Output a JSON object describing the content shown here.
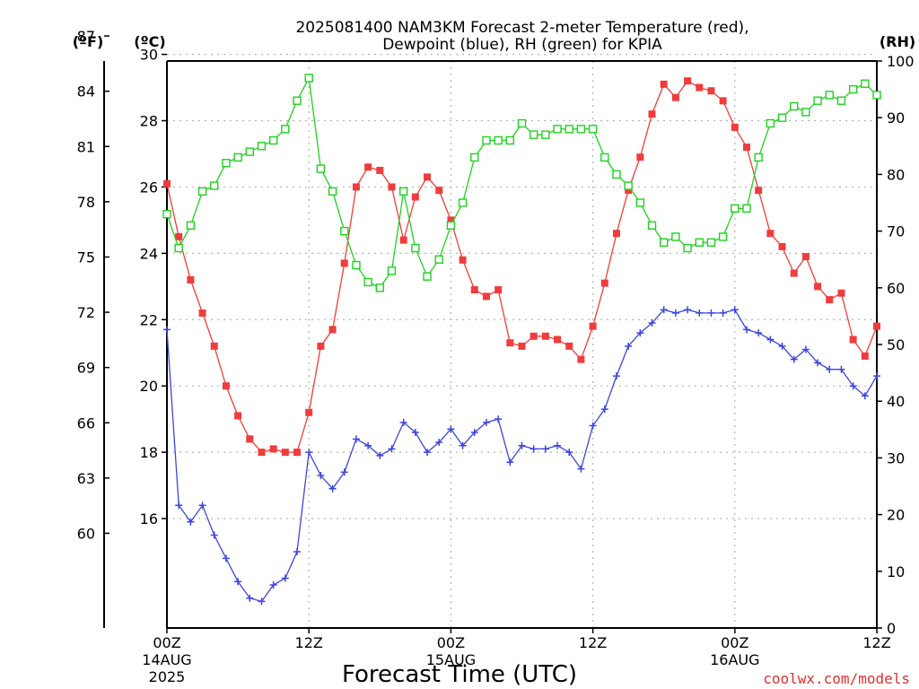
{
  "title_line1": "2025081400 NAM3KM Forecast 2-meter Temperature (red),",
  "title_line2": "Dewpoint (blue), RH (green) for KPIA",
  "credit": "coolwx.com/models",
  "unit_left_f": "(ºF)",
  "unit_left_c": "(ºC)",
  "unit_right": "(RH)",
  "colors": {
    "temperature": "#f03c3c",
    "dewpoint": "#3c46dc",
    "rh": "#1ed21e",
    "grid": "#b4b4b4"
  },
  "chart_data": {
    "type": "line",
    "xlabel": "Forecast Time (UTC)",
    "x_unit": "forecast hour",
    "xlim": [
      0,
      60
    ],
    "x_ticks": [
      {
        "hour": 0,
        "label": "00Z"
      },
      {
        "hour": 12,
        "label": "12Z"
      },
      {
        "hour": 24,
        "label": "00Z"
      },
      {
        "hour": 36,
        "label": "12Z"
      },
      {
        "hour": 48,
        "label": "00Z"
      },
      {
        "hour": 60,
        "label": "12Z"
      }
    ],
    "date_labels": [
      {
        "hour": 0,
        "line1": "14AUG",
        "line2": "2025"
      },
      {
        "hour": 24,
        "line1": "15AUG",
        "line2": ""
      },
      {
        "hour": 48,
        "line1": "16AUG",
        "line2": ""
      }
    ],
    "y_celsius": {
      "lim": [
        12.7,
        29.8
      ],
      "ticks": [
        16,
        18,
        20,
        22,
        24,
        26,
        28,
        30
      ]
    },
    "y_fahrenheit": {
      "ticks": [
        60,
        63,
        66,
        69,
        72,
        75,
        78,
        81,
        84,
        87
      ]
    },
    "y_rh": {
      "lim": [
        0,
        100
      ],
      "ticks": [
        0,
        10,
        20,
        30,
        40,
        50,
        60,
        70,
        80,
        90,
        100
      ]
    },
    "grid": true,
    "series": [
      {
        "name": "Temperature",
        "axis": "celsius",
        "marker": "filled-square",
        "values": [
          26.1,
          24.5,
          23.2,
          22.2,
          21.2,
          20.0,
          19.1,
          18.4,
          18.0,
          18.1,
          18.0,
          18.0,
          19.2,
          21.2,
          21.7,
          23.7,
          26.0,
          26.6,
          26.5,
          26.0,
          24.4,
          25.7,
          26.3,
          25.9,
          25.0,
          23.8,
          22.9,
          22.7,
          22.9,
          21.3,
          21.2,
          21.5,
          21.5,
          21.4,
          21.2,
          20.8,
          21.8,
          23.1,
          24.6,
          25.9,
          26.9,
          28.2,
          29.1,
          28.7,
          29.2,
          29.0,
          28.9,
          28.6,
          27.8,
          27.2,
          25.9,
          24.6,
          24.2,
          23.4,
          23.9,
          23.0,
          22.6,
          22.8,
          21.4,
          20.9,
          21.8
        ]
      },
      {
        "name": "Dewpoint",
        "axis": "celsius",
        "marker": "plus",
        "values": [
          21.7,
          16.4,
          15.9,
          16.4,
          15.5,
          14.8,
          14.1,
          13.6,
          13.5,
          14.0,
          14.2,
          15.0,
          18.0,
          17.3,
          16.9,
          17.4,
          18.4,
          18.2,
          17.9,
          18.1,
          18.9,
          18.6,
          18.0,
          18.3,
          18.7,
          18.2,
          18.6,
          18.9,
          19.0,
          17.7,
          18.2,
          18.1,
          18.1,
          18.2,
          18.0,
          17.5,
          18.8,
          19.3,
          20.3,
          21.2,
          21.6,
          21.9,
          22.3,
          22.2,
          22.3,
          22.2,
          22.2,
          22.2,
          22.3,
          21.7,
          21.6,
          21.4,
          21.2,
          20.8,
          21.1,
          20.7,
          20.5,
          20.5,
          20.0,
          19.7,
          20.3
        ]
      },
      {
        "name": "Relative Humidity",
        "axis": "rh",
        "marker": "open-square",
        "values": [
          73,
          67,
          71,
          77,
          78,
          82,
          83,
          84,
          85,
          86,
          88,
          93,
          97,
          81,
          77,
          70,
          64,
          61,
          60,
          63,
          77,
          67,
          62,
          65,
          71,
          75,
          83,
          86,
          86,
          86,
          89,
          87,
          87,
          88,
          88,
          88,
          88,
          83,
          80,
          78,
          75,
          71,
          68,
          69,
          67,
          68,
          68,
          69,
          74,
          74,
          83,
          89,
          90,
          92,
          91,
          93,
          94,
          93,
          95,
          96,
          94
        ]
      }
    ]
  }
}
